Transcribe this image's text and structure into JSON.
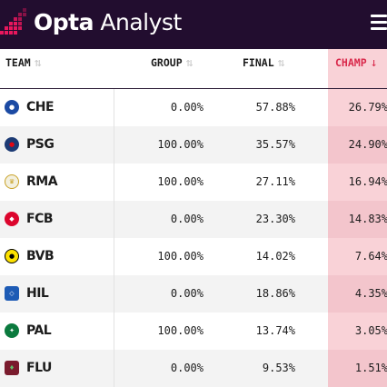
{
  "brand": {
    "name_bold": "Opta",
    "name_light": " Analyst",
    "colors": {
      "bar": "#220d2f",
      "logo_pink": "#e8175d",
      "highlight": "#f9d2d7",
      "accent": "#d9294b"
    }
  },
  "header": {
    "menu_icon": "hamburger-menu-icon"
  },
  "table": {
    "columns": [
      {
        "key": "team",
        "label": "TEAM",
        "sort_icon": "sort-arrows-icon",
        "sorted": false
      },
      {
        "key": "group",
        "label": "GROUP",
        "sort_icon": "sort-arrows-icon",
        "sorted": false
      },
      {
        "key": "final",
        "label": "FINAL",
        "sort_icon": "sort-arrows-icon",
        "sorted": false
      },
      {
        "key": "champ",
        "label": "CHAMP",
        "sort_icon": "sort-descending-icon",
        "sorted": true
      }
    ],
    "rows": [
      {
        "team": "CHE",
        "badge_icon": "chelsea-crest-icon",
        "badge_color": "#1b4aa3",
        "badge_fg": "#ffffff",
        "group": "0.00%",
        "final": "57.88%",
        "champ": "26.79%"
      },
      {
        "team": "PSG",
        "badge_icon": "psg-crest-icon",
        "badge_color": "#1c3a74",
        "badge_fg": "#e30613",
        "group": "100.00%",
        "final": "35.57%",
        "champ": "24.90%"
      },
      {
        "team": "RMA",
        "badge_icon": "real-madrid-crest-icon",
        "badge_color": "#f3f0df",
        "badge_fg": "#c9a227",
        "group": "100.00%",
        "final": "27.11%",
        "champ": "16.94%"
      },
      {
        "team": "FCB",
        "badge_icon": "bayern-crest-icon",
        "badge_color": "#dc052d",
        "badge_fg": "#ffffff",
        "group": "0.00%",
        "final": "23.30%",
        "champ": "14.83%"
      },
      {
        "team": "BVB",
        "badge_icon": "dortmund-crest-icon",
        "badge_color": "#fde100",
        "badge_fg": "#000000",
        "group": "100.00%",
        "final": "14.02%",
        "champ": "7.64%"
      },
      {
        "team": "HIL",
        "badge_icon": "al-hilal-crest-icon",
        "badge_color": "#1d5bb5",
        "badge_fg": "#ffffff",
        "group": "0.00%",
        "final": "18.86%",
        "champ": "4.35%"
      },
      {
        "team": "PAL",
        "badge_icon": "palmeiras-crest-icon",
        "badge_color": "#0b7a3e",
        "badge_fg": "#ffffff",
        "group": "100.00%",
        "final": "13.74%",
        "champ": "3.05%"
      },
      {
        "team": "FLU",
        "badge_icon": "fluminense-crest-icon",
        "badge_color": "#7a1b2d",
        "badge_fg": "#5fbf6a",
        "group": "0.00%",
        "final": "9.53%",
        "champ": "1.51%"
      }
    ]
  }
}
